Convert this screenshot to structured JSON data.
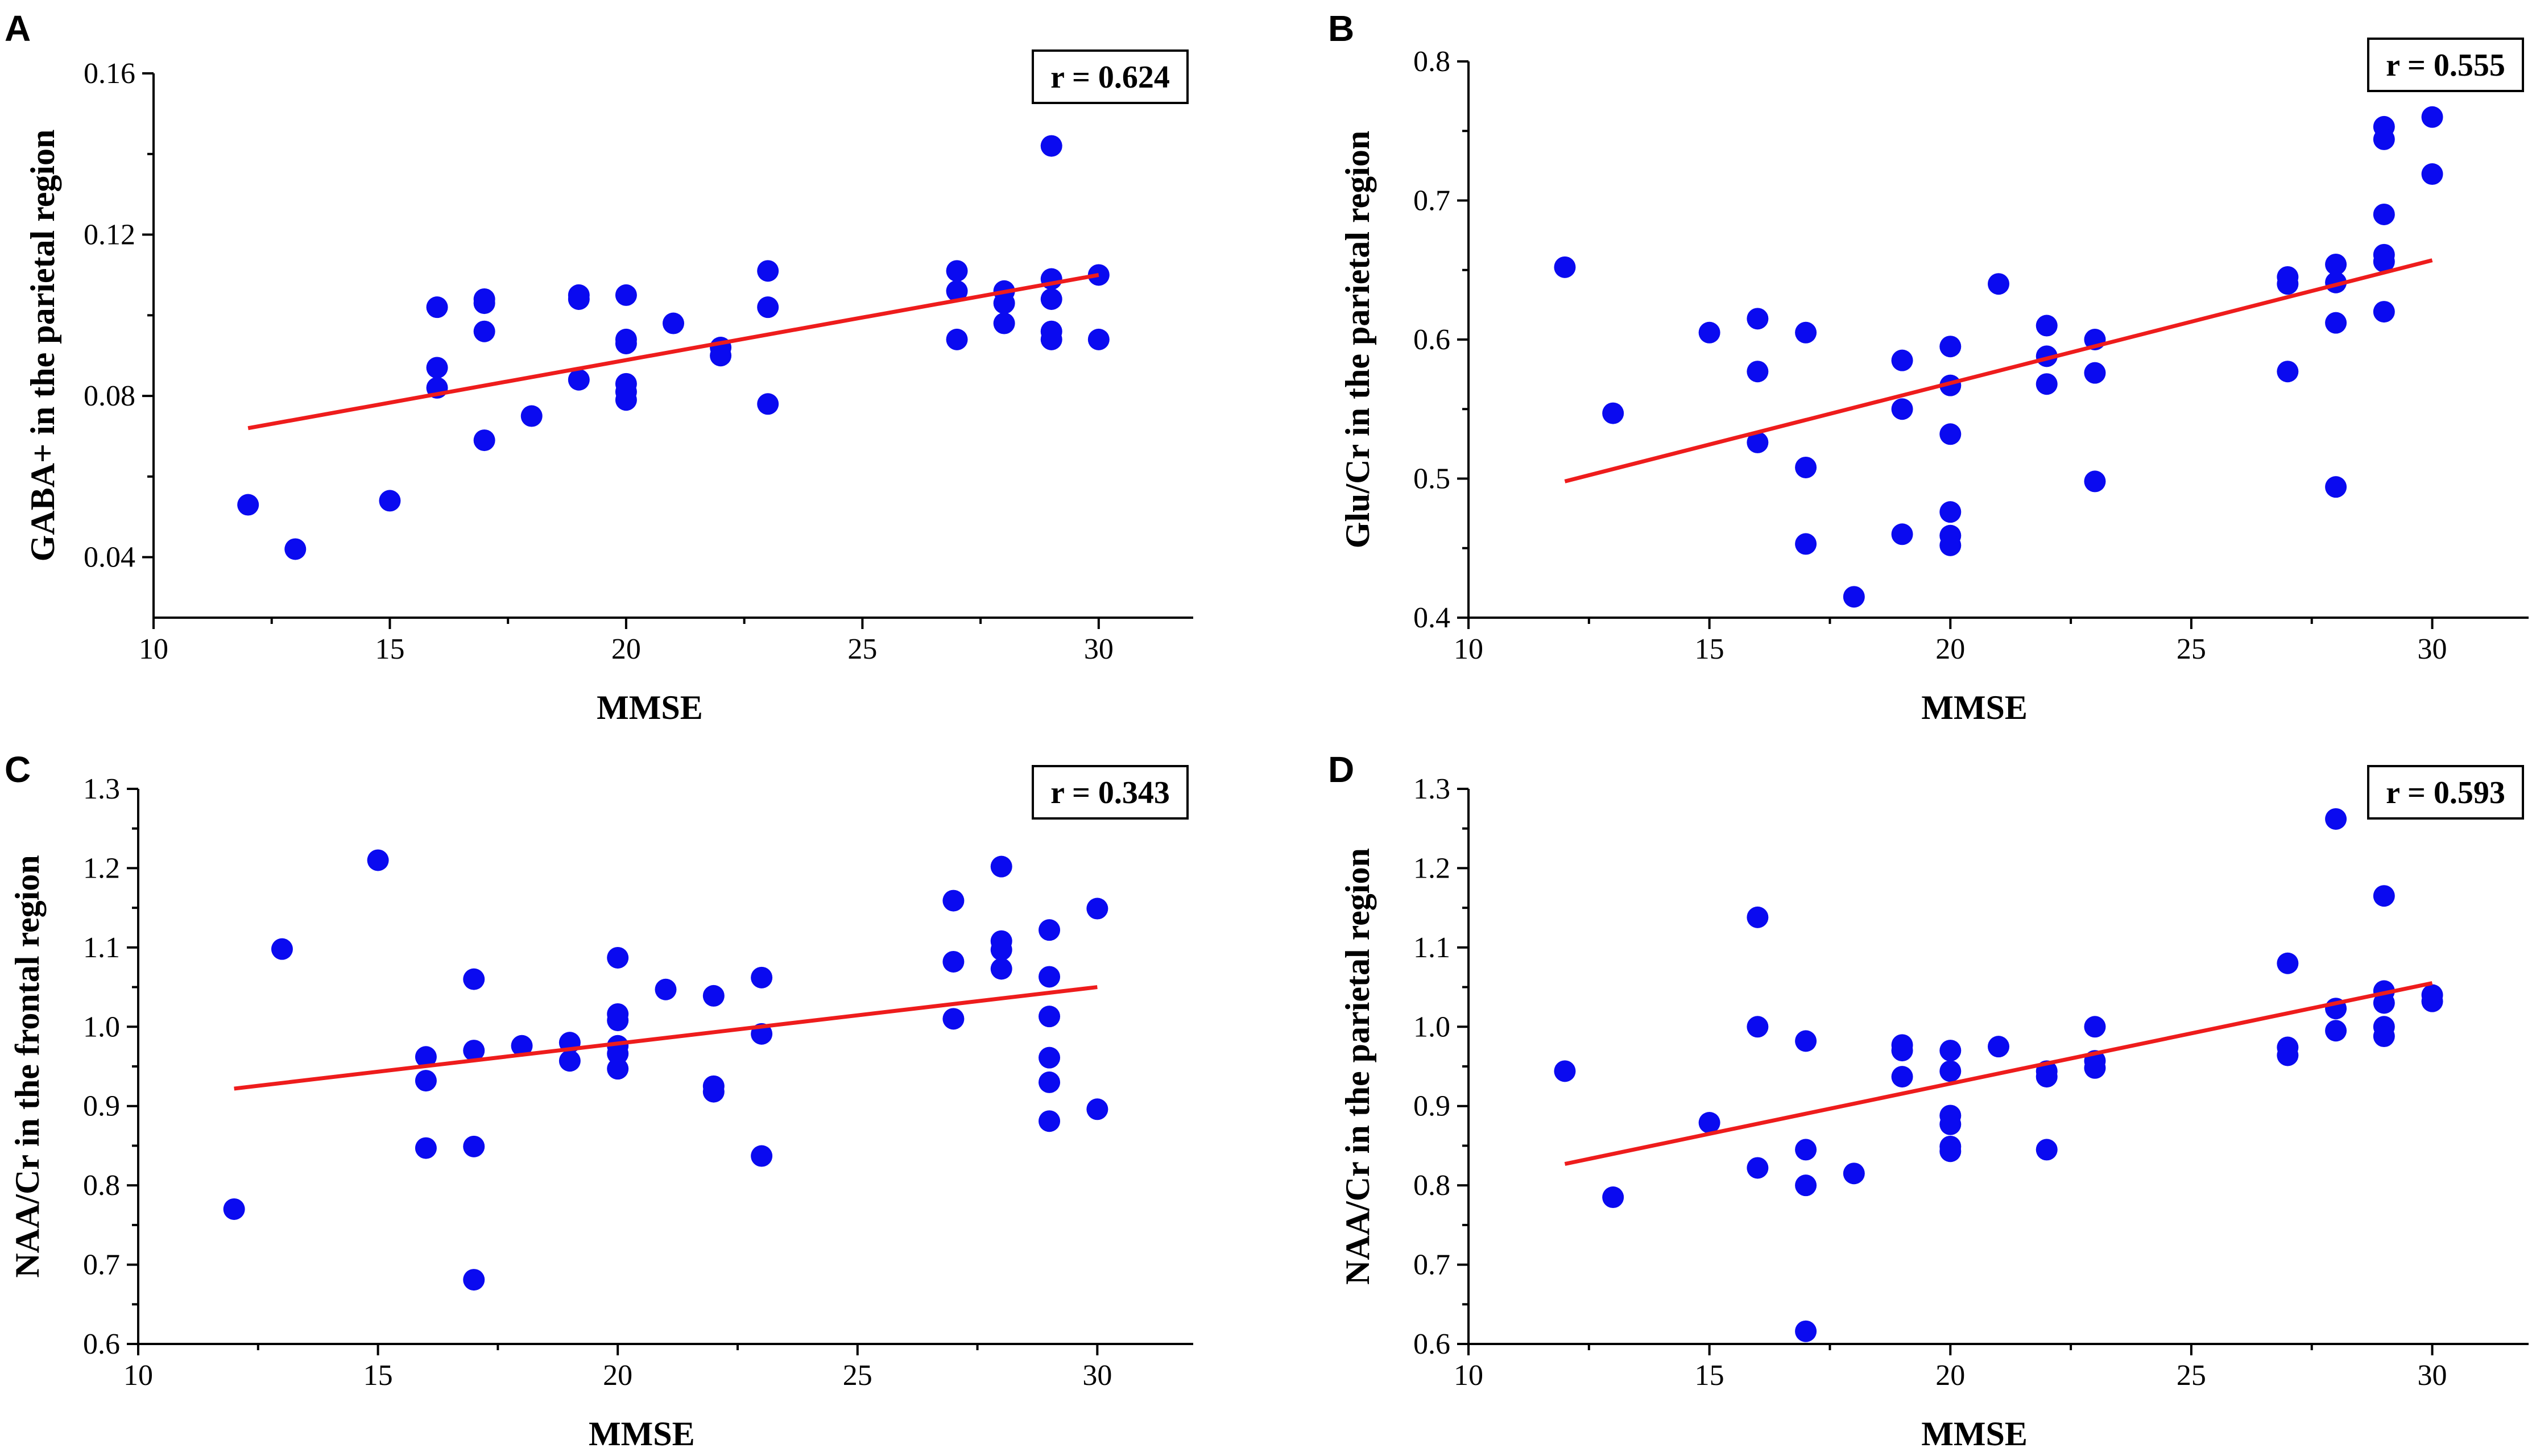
{
  "chart_data": [
    {
      "id": "A",
      "type": "scatter",
      "panel_label": "A",
      "xlabel": "MMSE",
      "ylabel": "GABA+ in the parietal region",
      "annotation": "r = 0.624",
      "xlim": [
        10,
        32
      ],
      "ylim": [
        0.025,
        0.16
      ],
      "xticks": [
        10,
        15,
        20,
        25,
        30
      ],
      "xtick_labels": [
        "10",
        "15",
        "20",
        "25",
        "30"
      ],
      "yticks": [
        0.04,
        0.08,
        0.12,
        0.16
      ],
      "ytick_labels": [
        "0.04",
        "0.08",
        "0.12",
        "0.16"
      ],
      "points": [
        [
          12,
          0.053
        ],
        [
          13,
          0.042
        ],
        [
          15,
          0.054
        ],
        [
          16,
          0.102
        ],
        [
          16,
          0.087
        ],
        [
          16,
          0.082
        ],
        [
          17,
          0.104
        ],
        [
          17,
          0.103
        ],
        [
          17,
          0.096
        ],
        [
          17,
          0.069
        ],
        [
          18,
          0.075
        ],
        [
          19,
          0.105
        ],
        [
          19,
          0.104
        ],
        [
          19,
          0.084
        ],
        [
          20,
          0.105
        ],
        [
          20,
          0.094
        ],
        [
          20,
          0.093
        ],
        [
          20,
          0.083
        ],
        [
          20,
          0.081
        ],
        [
          20,
          0.079
        ],
        [
          21,
          0.098
        ],
        [
          22,
          0.092
        ],
        [
          22,
          0.09
        ],
        [
          23,
          0.111
        ],
        [
          23,
          0.102
        ],
        [
          23,
          0.078
        ],
        [
          27,
          0.111
        ],
        [
          27,
          0.106
        ],
        [
          27,
          0.094
        ],
        [
          28,
          0.106
        ],
        [
          28,
          0.103
        ],
        [
          28,
          0.098
        ],
        [
          29,
          0.142
        ],
        [
          29,
          0.109
        ],
        [
          29,
          0.104
        ],
        [
          29,
          0.096
        ],
        [
          29,
          0.094
        ],
        [
          30,
          0.11
        ],
        [
          30,
          0.094
        ]
      ],
      "fit_line": [
        [
          12,
          0.072
        ],
        [
          30,
          0.11
        ]
      ]
    },
    {
      "id": "B",
      "type": "scatter",
      "panel_label": "B",
      "xlabel": "MMSE",
      "ylabel": "Glu/Cr in the parietal region",
      "annotation": "r = 0.555",
      "xlim": [
        10,
        32
      ],
      "ylim": [
        0.4,
        0.8
      ],
      "xticks": [
        10,
        15,
        20,
        25,
        30
      ],
      "xtick_labels": [
        "10",
        "15",
        "20",
        "25",
        "30"
      ],
      "yticks": [
        0.4,
        0.5,
        0.6,
        0.7,
        0.8
      ],
      "ytick_labels": [
        "0.4",
        "0.5",
        "0.6",
        "0.7",
        "0.8"
      ],
      "points": [
        [
          12,
          0.652
        ],
        [
          13,
          0.547
        ],
        [
          15,
          0.605
        ],
        [
          16,
          0.615
        ],
        [
          16,
          0.577
        ],
        [
          16,
          0.526
        ],
        [
          17,
          0.605
        ],
        [
          17,
          0.508
        ],
        [
          17,
          0.453
        ],
        [
          18,
          0.415
        ],
        [
          19,
          0.585
        ],
        [
          19,
          0.55
        ],
        [
          19,
          0.46
        ],
        [
          20,
          0.595
        ],
        [
          20,
          0.567
        ],
        [
          20,
          0.532
        ],
        [
          20,
          0.476
        ],
        [
          20,
          0.459
        ],
        [
          20,
          0.452
        ],
        [
          21,
          0.64
        ],
        [
          22,
          0.61
        ],
        [
          22,
          0.588
        ],
        [
          22,
          0.568
        ],
        [
          23,
          0.6
        ],
        [
          23,
          0.576
        ],
        [
          23,
          0.498
        ],
        [
          27,
          0.645
        ],
        [
          27,
          0.64
        ],
        [
          27,
          0.577
        ],
        [
          28,
          0.654
        ],
        [
          28,
          0.641
        ],
        [
          28,
          0.612
        ],
        [
          28,
          0.494
        ],
        [
          29,
          0.753
        ],
        [
          29,
          0.744
        ],
        [
          29,
          0.69
        ],
        [
          29,
          0.661
        ],
        [
          29,
          0.656
        ],
        [
          29,
          0.62
        ],
        [
          30,
          0.76
        ],
        [
          30,
          0.719
        ]
      ],
      "fit_line": [
        [
          12,
          0.498
        ],
        [
          30,
          0.657
        ]
      ]
    },
    {
      "id": "C",
      "type": "scatter",
      "panel_label": "C",
      "xlabel": "MMSE",
      "ylabel": "NAA/Cr in the frontal region",
      "annotation": "r = 0.343",
      "xlim": [
        10,
        32
      ],
      "ylim": [
        0.6,
        1.3
      ],
      "xticks": [
        10,
        15,
        20,
        25,
        30
      ],
      "xtick_labels": [
        "10",
        "15",
        "20",
        "25",
        "30"
      ],
      "yticks": [
        0.6,
        0.7,
        0.8,
        0.9,
        1.0,
        1.1,
        1.2,
        1.3
      ],
      "ytick_labels": [
        "0.6",
        "0.7",
        "0.8",
        "0.9",
        "1.0",
        "1.1",
        "1.2",
        "1.3"
      ],
      "points": [
        [
          12,
          0.77
        ],
        [
          13,
          1.098
        ],
        [
          15,
          1.21
        ],
        [
          16,
          0.962
        ],
        [
          16,
          0.932
        ],
        [
          16,
          0.847
        ],
        [
          17,
          1.06
        ],
        [
          17,
          0.97
        ],
        [
          17,
          0.849
        ],
        [
          17,
          0.681
        ],
        [
          18,
          0.976
        ],
        [
          19,
          0.98
        ],
        [
          19,
          0.957
        ],
        [
          20,
          1.087
        ],
        [
          20,
          1.016
        ],
        [
          20,
          1.008
        ],
        [
          20,
          0.976
        ],
        [
          20,
          0.966
        ],
        [
          20,
          0.947
        ],
        [
          21,
          1.047
        ],
        [
          22,
          1.039
        ],
        [
          22,
          0.925
        ],
        [
          22,
          0.918
        ],
        [
          23,
          1.062
        ],
        [
          23,
          0.991
        ],
        [
          23,
          0.837
        ],
        [
          27,
          1.159
        ],
        [
          27,
          1.082
        ],
        [
          27,
          1.01
        ],
        [
          28,
          1.202
        ],
        [
          28,
          1.108
        ],
        [
          28,
          1.097
        ],
        [
          28,
          1.073
        ],
        [
          29,
          1.122
        ],
        [
          29,
          1.063
        ],
        [
          29,
          1.013
        ],
        [
          29,
          0.961
        ],
        [
          29,
          0.93
        ],
        [
          29,
          0.881
        ],
        [
          30,
          1.149
        ],
        [
          30,
          0.896
        ]
      ],
      "fit_line": [
        [
          12,
          0.922
        ],
        [
          30,
          1.05
        ]
      ]
    },
    {
      "id": "D",
      "type": "scatter",
      "panel_label": "D",
      "xlabel": "MMSE",
      "ylabel": "NAA/Cr in the parietal region",
      "annotation": "r = 0.593",
      "xlim": [
        10,
        32
      ],
      "ylim": [
        0.6,
        1.3
      ],
      "xticks": [
        10,
        15,
        20,
        25,
        30
      ],
      "xtick_labels": [
        "10",
        "15",
        "20",
        "25",
        "30"
      ],
      "yticks": [
        0.6,
        0.7,
        0.8,
        0.9,
        1.0,
        1.1,
        1.2,
        1.3
      ],
      "ytick_labels": [
        "0.6",
        "0.7",
        "0.8",
        "0.9",
        "1.0",
        "1.1",
        "1.2",
        "1.3"
      ],
      "points": [
        [
          12,
          0.944
        ],
        [
          13,
          0.785
        ],
        [
          15,
          0.879
        ],
        [
          16,
          1.138
        ],
        [
          16,
          1.0
        ],
        [
          16,
          0.822
        ],
        [
          17,
          0.982
        ],
        [
          17,
          0.845
        ],
        [
          17,
          0.8
        ],
        [
          17,
          0.616
        ],
        [
          18,
          0.815
        ],
        [
          19,
          0.977
        ],
        [
          19,
          0.97
        ],
        [
          19,
          0.937
        ],
        [
          20,
          0.97
        ],
        [
          20,
          0.944
        ],
        [
          20,
          0.888
        ],
        [
          20,
          0.877
        ],
        [
          20,
          0.849
        ],
        [
          20,
          0.843
        ],
        [
          21,
          0.975
        ],
        [
          22,
          0.944
        ],
        [
          22,
          0.937
        ],
        [
          22,
          0.845
        ],
        [
          23,
          1.0
        ],
        [
          23,
          0.957
        ],
        [
          23,
          0.948
        ],
        [
          27,
          1.08
        ],
        [
          27,
          0.974
        ],
        [
          27,
          0.964
        ],
        [
          28,
          1.262
        ],
        [
          28,
          1.023
        ],
        [
          28,
          0.995
        ],
        [
          29,
          1.165
        ],
        [
          29,
          1.045
        ],
        [
          29,
          1.03
        ],
        [
          29,
          1.0
        ],
        [
          29,
          0.988
        ],
        [
          30,
          1.04
        ],
        [
          30,
          1.032
        ]
      ],
      "fit_line": [
        [
          12,
          0.827
        ],
        [
          30,
          1.055
        ]
      ]
    }
  ]
}
